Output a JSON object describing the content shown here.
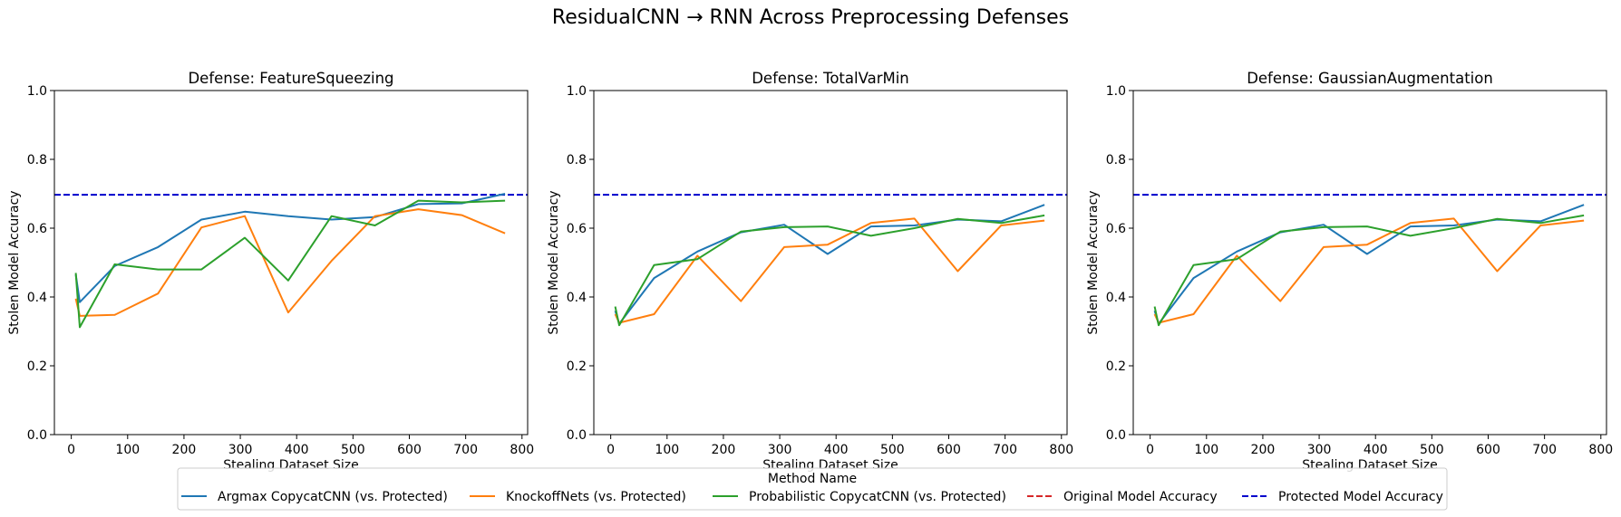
{
  "suptitle": "ResidualCNN → RNN Across Preprocessing Defenses",
  "legend": {
    "title": "Method Name",
    "placement": "bottom-center",
    "entries": [
      {
        "label": "Argmax CopycatCNN (vs. Protected)",
        "color": "#1f77b4",
        "style": "solid"
      },
      {
        "label": "KnockoffNets (vs. Protected)",
        "color": "#ff7f0e",
        "style": "solid"
      },
      {
        "label": "Probabilistic CopycatCNN (vs. Protected)",
        "color": "#2ca02c",
        "style": "solid"
      },
      {
        "label": "Original Model Accuracy",
        "color": "#d62728",
        "style": "dashed"
      },
      {
        "label": "Protected Model Accuracy",
        "color": "#0000cc",
        "style": "dashed"
      }
    ]
  },
  "chart_data": [
    {
      "type": "line",
      "title": "Defense: FeatureSqueezing",
      "xlabel": "Stealing Dataset Size",
      "ylabel": "Stolen Model Accuracy",
      "xlim": [
        -30,
        810
      ],
      "ylim": [
        0,
        1.0
      ],
      "xticks": [
        0,
        100,
        200,
        300,
        400,
        500,
        600,
        700,
        800
      ],
      "yticks": [
        0.0,
        0.2,
        0.4,
        0.6,
        0.8,
        1.0
      ],
      "grid": false,
      "protected_accuracy": 0.697,
      "series": [
        {
          "name": "Argmax CopycatCNN (vs. Protected)",
          "color": "#1f77b4",
          "x": [
            8,
            15,
            77,
            154,
            231,
            308,
            385,
            462,
            539,
            616,
            693,
            770
          ],
          "y": [
            0.465,
            0.385,
            0.49,
            0.545,
            0.625,
            0.648,
            0.635,
            0.625,
            0.632,
            0.67,
            0.672,
            0.7
          ]
        },
        {
          "name": "KnockoffNets (vs. Protected)",
          "color": "#ff7f0e",
          "x": [
            8,
            15,
            77,
            154,
            231,
            308,
            385,
            462,
            539,
            616,
            693,
            770
          ],
          "y": [
            0.395,
            0.345,
            0.348,
            0.41,
            0.602,
            0.635,
            0.355,
            0.505,
            0.635,
            0.655,
            0.638,
            0.585
          ]
        },
        {
          "name": "Probabilistic CopycatCNN (vs. Protected)",
          "color": "#2ca02c",
          "x": [
            8,
            15,
            77,
            154,
            231,
            308,
            385,
            462,
            539,
            616,
            693,
            770
          ],
          "y": [
            0.47,
            0.312,
            0.495,
            0.48,
            0.48,
            0.572,
            0.448,
            0.635,
            0.608,
            0.68,
            0.675,
            0.68
          ]
        }
      ]
    },
    {
      "type": "line",
      "title": "Defense: TotalVarMin",
      "xlabel": "Stealing Dataset Size",
      "ylabel": "Stolen Model Accuracy",
      "xlim": [
        -30,
        810
      ],
      "ylim": [
        0,
        1.0
      ],
      "xticks": [
        0,
        100,
        200,
        300,
        400,
        500,
        600,
        700,
        800
      ],
      "yticks": [
        0.0,
        0.2,
        0.4,
        0.6,
        0.8,
        1.0
      ],
      "grid": false,
      "protected_accuracy": 0.697,
      "series": [
        {
          "name": "Argmax CopycatCNN (vs. Protected)",
          "color": "#1f77b4",
          "x": [
            8,
            15,
            77,
            154,
            231,
            308,
            385,
            462,
            539,
            616,
            693,
            770
          ],
          "y": [
            0.36,
            0.322,
            0.455,
            0.532,
            0.588,
            0.61,
            0.525,
            0.605,
            0.608,
            0.625,
            0.62,
            0.668
          ]
        },
        {
          "name": "KnockoffNets (vs. Protected)",
          "color": "#ff7f0e",
          "x": [
            8,
            15,
            77,
            154,
            231,
            308,
            385,
            462,
            539,
            616,
            693,
            770
          ],
          "y": [
            0.35,
            0.325,
            0.35,
            0.52,
            0.388,
            0.545,
            0.552,
            0.615,
            0.628,
            0.475,
            0.608,
            0.622
          ]
        },
        {
          "name": "Probabilistic CopycatCNN (vs. Protected)",
          "color": "#2ca02c",
          "x": [
            8,
            15,
            77,
            154,
            231,
            308,
            385,
            462,
            539,
            616,
            693,
            770
          ],
          "y": [
            0.372,
            0.318,
            0.493,
            0.51,
            0.59,
            0.603,
            0.605,
            0.578,
            0.6,
            0.627,
            0.615,
            0.637
          ]
        }
      ]
    },
    {
      "type": "line",
      "title": "Defense: GaussianAugmentation",
      "xlabel": "Stealing Dataset Size",
      "ylabel": "Stolen Model Accuracy",
      "xlim": [
        -30,
        810
      ],
      "ylim": [
        0,
        1.0
      ],
      "xticks": [
        0,
        100,
        200,
        300,
        400,
        500,
        600,
        700,
        800
      ],
      "yticks": [
        0.0,
        0.2,
        0.4,
        0.6,
        0.8,
        1.0
      ],
      "grid": false,
      "protected_accuracy": 0.697,
      "series": [
        {
          "name": "Argmax CopycatCNN (vs. Protected)",
          "color": "#1f77b4",
          "x": [
            8,
            15,
            77,
            154,
            231,
            308,
            385,
            462,
            539,
            616,
            693,
            770
          ],
          "y": [
            0.36,
            0.322,
            0.455,
            0.532,
            0.588,
            0.61,
            0.525,
            0.605,
            0.608,
            0.625,
            0.62,
            0.668
          ]
        },
        {
          "name": "KnockoffNets (vs. Protected)",
          "color": "#ff7f0e",
          "x": [
            8,
            15,
            77,
            154,
            231,
            308,
            385,
            462,
            539,
            616,
            693,
            770
          ],
          "y": [
            0.35,
            0.325,
            0.35,
            0.52,
            0.388,
            0.545,
            0.552,
            0.615,
            0.628,
            0.475,
            0.608,
            0.622
          ]
        },
        {
          "name": "Probabilistic CopycatCNN (vs. Protected)",
          "color": "#2ca02c",
          "x": [
            8,
            15,
            77,
            154,
            231,
            308,
            385,
            462,
            539,
            616,
            693,
            770
          ],
          "y": [
            0.372,
            0.318,
            0.493,
            0.51,
            0.59,
            0.603,
            0.605,
            0.578,
            0.6,
            0.627,
            0.615,
            0.637
          ]
        }
      ]
    }
  ]
}
